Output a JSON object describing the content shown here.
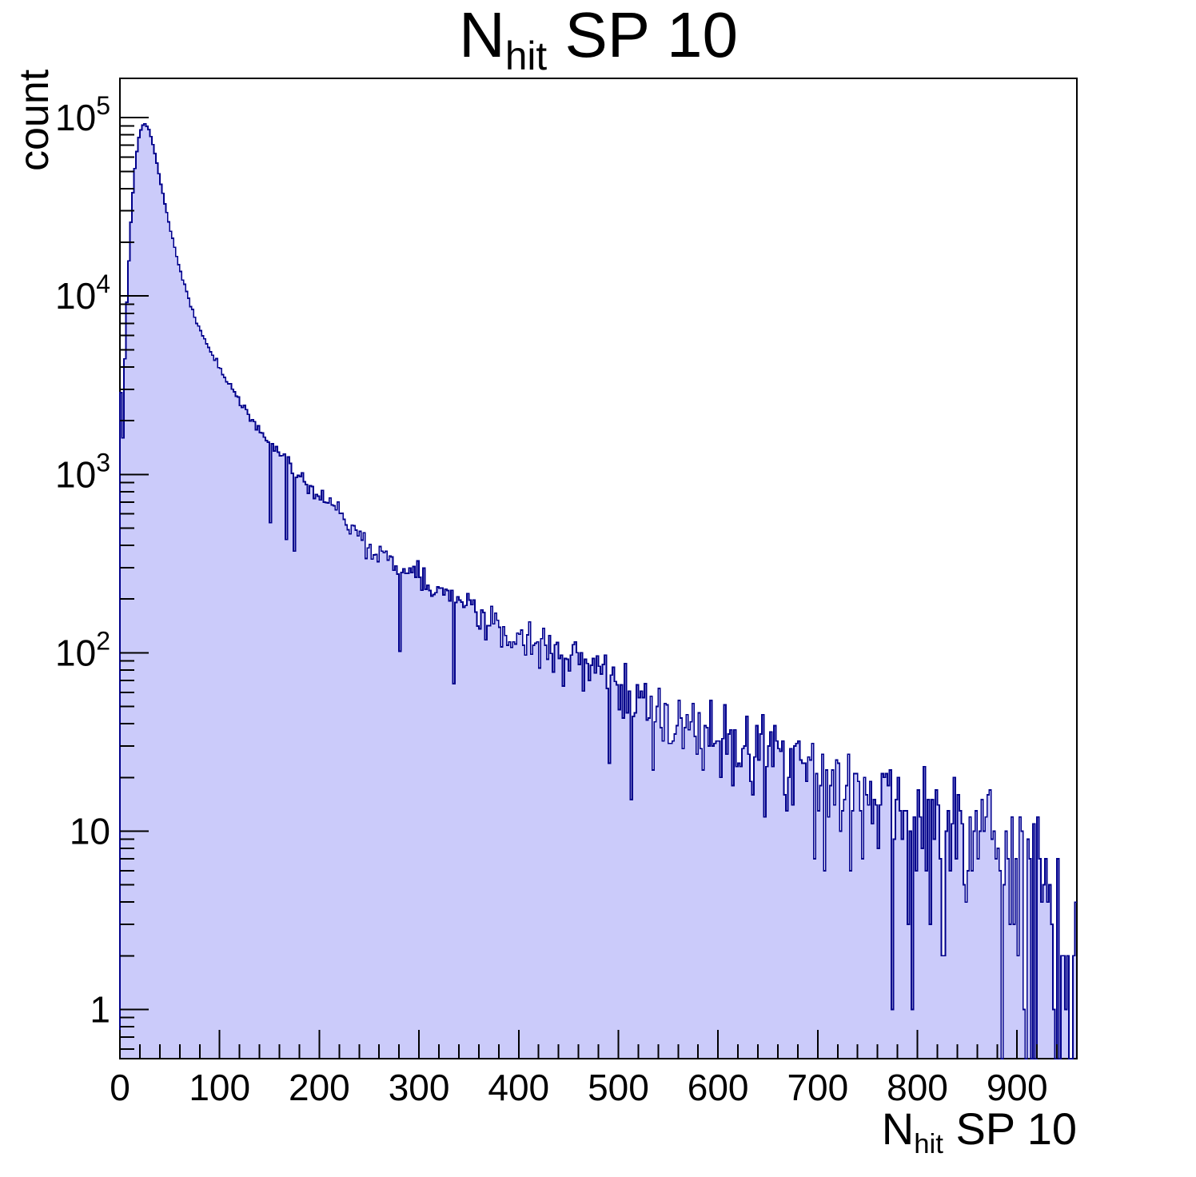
{
  "chart_data": {
    "type": "histogram",
    "title": "N_hit SP 10",
    "title_parts": {
      "pre": "N",
      "sub": "hit",
      "post": " SP 10"
    },
    "xlabel_parts": {
      "pre": "N",
      "sub": "hit",
      "post": " SP 10"
    },
    "ylabel": "count",
    "yscale": "log",
    "xlim": [
      0,
      960
    ],
    "ylim": [
      0.53,
      166000
    ],
    "bin_width": 2,
    "n_bins": 480,
    "seed": 1337,
    "x_minor_step": 20,
    "x_ticks": [
      {
        "value": 0,
        "label": "0"
      },
      {
        "value": 100,
        "label": "100"
      },
      {
        "value": 200,
        "label": "200"
      },
      {
        "value": 300,
        "label": "300"
      },
      {
        "value": 400,
        "label": "400"
      },
      {
        "value": 500,
        "label": "500"
      },
      {
        "value": 600,
        "label": "600"
      },
      {
        "value": 700,
        "label": "700"
      },
      {
        "value": 800,
        "label": "800"
      },
      {
        "value": 900,
        "label": "900"
      }
    ],
    "y_ticks": [
      {
        "value": 1,
        "base": "1",
        "exp": ""
      },
      {
        "value": 10,
        "base": "10",
        "exp": ""
      },
      {
        "value": 100,
        "base": "10",
        "exp": "2"
      },
      {
        "value": 1000,
        "base": "10",
        "exp": "3"
      },
      {
        "value": 10000,
        "base": "10",
        "exp": "4"
      },
      {
        "value": 100000,
        "base": "10",
        "exp": "5"
      }
    ],
    "peak": {
      "x": 25,
      "count": 92500
    },
    "envelope_points": [
      [
        0,
        3200
      ],
      [
        1,
        2900
      ],
      [
        3,
        1600
      ],
      [
        5,
        4500
      ],
      [
        7,
        9000
      ],
      [
        9,
        16000
      ],
      [
        11,
        26000
      ],
      [
        13,
        38000
      ],
      [
        15,
        52000
      ],
      [
        17,
        65000
      ],
      [
        19,
        77000
      ],
      [
        21,
        86000
      ],
      [
        23,
        91500
      ],
      [
        25,
        92500
      ],
      [
        27,
        90000
      ],
      [
        29,
        86000
      ],
      [
        34,
        67000
      ],
      [
        38,
        52000
      ],
      [
        42,
        40000
      ],
      [
        46,
        31000
      ],
      [
        50,
        24500
      ],
      [
        55,
        18600
      ],
      [
        60,
        14400
      ],
      [
        65,
        11400
      ],
      [
        70,
        9300
      ],
      [
        75,
        7700
      ],
      [
        80,
        6500
      ],
      [
        85,
        5650
      ],
      [
        90,
        4950
      ],
      [
        95,
        4400
      ],
      [
        100,
        3950
      ],
      [
        110,
        3200
      ],
      [
        120,
        2600
      ],
      [
        130,
        2150
      ],
      [
        140,
        1800
      ],
      [
        150,
        1530
      ],
      [
        160,
        1310
      ],
      [
        170,
        1130
      ],
      [
        180,
        990
      ],
      [
        190,
        860
      ],
      [
        200,
        740
      ],
      [
        210,
        690
      ],
      [
        220,
        615
      ],
      [
        230,
        530
      ],
      [
        240,
        460
      ],
      [
        250,
        400
      ],
      [
        260,
        358
      ],
      [
        270,
        325
      ],
      [
        280,
        298
      ],
      [
        290,
        276
      ],
      [
        300,
        257
      ],
      [
        320,
        222
      ],
      [
        340,
        193
      ],
      [
        360,
        166
      ],
      [
        380,
        145
      ],
      [
        400,
        128
      ],
      [
        420,
        113
      ],
      [
        440,
        99
      ],
      [
        460,
        88
      ],
      [
        480,
        77
      ],
      [
        500,
        67
      ],
      [
        520,
        58
      ],
      [
        540,
        51
      ],
      [
        560,
        46
      ],
      [
        580,
        41
      ],
      [
        600,
        37
      ],
      [
        620,
        33
      ],
      [
        640,
        30
      ],
      [
        660,
        27
      ],
      [
        680,
        24
      ],
      [
        700,
        21.5
      ],
      [
        720,
        19.5
      ],
      [
        740,
        17.5
      ],
      [
        760,
        15.5
      ],
      [
        780,
        14
      ],
      [
        800,
        12.5
      ],
      [
        820,
        11.2
      ],
      [
        840,
        10
      ],
      [
        860,
        9
      ],
      [
        880,
        8
      ],
      [
        900,
        7
      ],
      [
        915,
        6
      ],
      [
        925,
        5
      ],
      [
        935,
        3.5
      ],
      [
        945,
        1.6
      ],
      [
        955,
        1.2
      ],
      [
        960,
        1
      ]
    ]
  },
  "style": {
    "fill_color": "#cbcbfa",
    "line_color": "#00008c",
    "axis_color": "#000000",
    "text_color": "#000000",
    "background": "#ffffff"
  }
}
